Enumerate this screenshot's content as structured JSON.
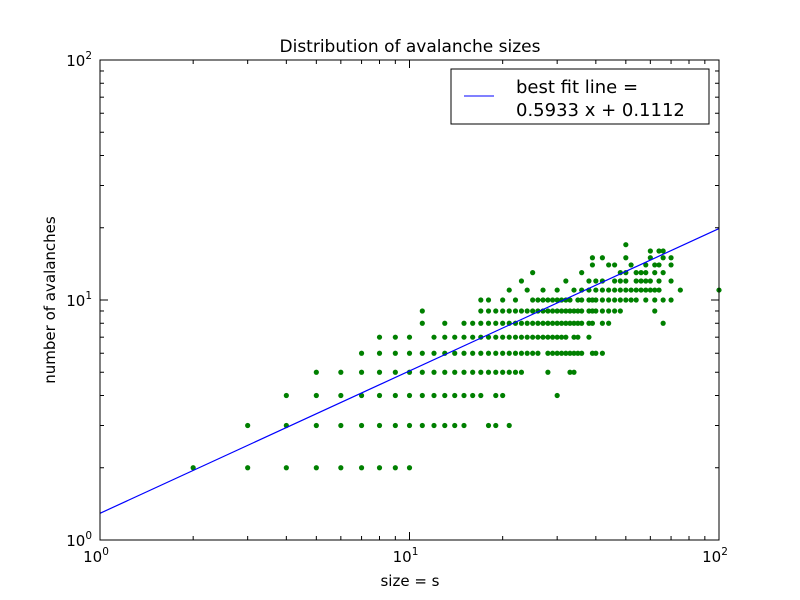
{
  "chart_data": {
    "type": "scatter",
    "title": "Distribution of avalanche sizes",
    "xlabel": "size = s",
    "ylabel": "number of avalanches",
    "xscale": "log",
    "yscale": "log",
    "xlim": [
      1,
      100
    ],
    "ylim": [
      1,
      100
    ],
    "x_ticks": [
      {
        "base": "10",
        "exp": "0",
        "value": 1
      },
      {
        "base": "10",
        "exp": "1",
        "value": 10
      },
      {
        "base": "10",
        "exp": "2",
        "value": 100
      }
    ],
    "y_ticks": [
      {
        "base": "10",
        "exp": "0",
        "value": 1
      },
      {
        "base": "10",
        "exp": "1",
        "value": 10
      },
      {
        "base": "10",
        "exp": "2",
        "value": 100
      }
    ],
    "grid": false,
    "legend": {
      "placement": "top-right",
      "line1": "best fit line =",
      "line2": "0.5933 x + 0.1112"
    },
    "fit_line": {
      "slope": 0.5933,
      "intercept": 0.1112,
      "color": "#0000ff"
    },
    "scatter_color": "#008000",
    "series": [
      {
        "points": [
          [
            2,
            2
          ],
          [
            3,
            3
          ],
          [
            3,
            2
          ],
          [
            4,
            4
          ],
          [
            4,
            3
          ],
          [
            4,
            2
          ],
          [
            5,
            5
          ],
          [
            5,
            4
          ],
          [
            5,
            3
          ],
          [
            5,
            2
          ],
          [
            6,
            5
          ],
          [
            6,
            4
          ],
          [
            6,
            3
          ],
          [
            6,
            2
          ],
          [
            7,
            6
          ],
          [
            7,
            5
          ],
          [
            7,
            4
          ],
          [
            7,
            3
          ],
          [
            7,
            2
          ],
          [
            8,
            7
          ],
          [
            8,
            6
          ],
          [
            8,
            5
          ],
          [
            8,
            4
          ],
          [
            8,
            3
          ],
          [
            8,
            2
          ],
          [
            9,
            7
          ],
          [
            9,
            6
          ],
          [
            9,
            5
          ],
          [
            9,
            4
          ],
          [
            9,
            3
          ],
          [
            9,
            2
          ],
          [
            10,
            7
          ],
          [
            10,
            6
          ],
          [
            10,
            5
          ],
          [
            10,
            4
          ],
          [
            10,
            3
          ],
          [
            10,
            2
          ],
          [
            11,
            9
          ],
          [
            11,
            8
          ],
          [
            11,
            6
          ],
          [
            11,
            5
          ],
          [
            11,
            4
          ],
          [
            11,
            3
          ],
          [
            12,
            7
          ],
          [
            12,
            6
          ],
          [
            12,
            5
          ],
          [
            12,
            4
          ],
          [
            12,
            3
          ],
          [
            13,
            8
          ],
          [
            13,
            7
          ],
          [
            13,
            6
          ],
          [
            13,
            5
          ],
          [
            13,
            4
          ],
          [
            13,
            3
          ],
          [
            14,
            7
          ],
          [
            14,
            6
          ],
          [
            14,
            5
          ],
          [
            14,
            4
          ],
          [
            14,
            3
          ],
          [
            15,
            8
          ],
          [
            15,
            7
          ],
          [
            15,
            6
          ],
          [
            15,
            5
          ],
          [
            15,
            4
          ],
          [
            15,
            3
          ],
          [
            16,
            8
          ],
          [
            16,
            7
          ],
          [
            16,
            6
          ],
          [
            16,
            5
          ],
          [
            16,
            4
          ],
          [
            17,
            10
          ],
          [
            17,
            9
          ],
          [
            17,
            8
          ],
          [
            17,
            7
          ],
          [
            17,
            6
          ],
          [
            17,
            5
          ],
          [
            17,
            4
          ],
          [
            18,
            10
          ],
          [
            18,
            9
          ],
          [
            18,
            8
          ],
          [
            18,
            7
          ],
          [
            18,
            6
          ],
          [
            18,
            5
          ],
          [
            18,
            3
          ],
          [
            19,
            9
          ],
          [
            19,
            8
          ],
          [
            19,
            7
          ],
          [
            19,
            6
          ],
          [
            19,
            5
          ],
          [
            19,
            4
          ],
          [
            19,
            3
          ],
          [
            20,
            10
          ],
          [
            20,
            9
          ],
          [
            20,
            8
          ],
          [
            20,
            7
          ],
          [
            20,
            6
          ],
          [
            20,
            5
          ],
          [
            20,
            4
          ],
          [
            21,
            11
          ],
          [
            21,
            9
          ],
          [
            21,
            8
          ],
          [
            21,
            7
          ],
          [
            21,
            6
          ],
          [
            21,
            5
          ],
          [
            21,
            3
          ],
          [
            22,
            10
          ],
          [
            22,
            9
          ],
          [
            22,
            8
          ],
          [
            22,
            7
          ],
          [
            22,
            6
          ],
          [
            22,
            5
          ],
          [
            23,
            12
          ],
          [
            23,
            9
          ],
          [
            23,
            8
          ],
          [
            23,
            7
          ],
          [
            23,
            6
          ],
          [
            23,
            5
          ],
          [
            24,
            11
          ],
          [
            24,
            9
          ],
          [
            24,
            8
          ],
          [
            24,
            7
          ],
          [
            24,
            6
          ],
          [
            25,
            13
          ],
          [
            25,
            10
          ],
          [
            25,
            9
          ],
          [
            25,
            8
          ],
          [
            25,
            7
          ],
          [
            25,
            6
          ],
          [
            26,
            10
          ],
          [
            26,
            9
          ],
          [
            26,
            8
          ],
          [
            26,
            7
          ],
          [
            26,
            6
          ],
          [
            27,
            11
          ],
          [
            27,
            10
          ],
          [
            27,
            9
          ],
          [
            27,
            8
          ],
          [
            27,
            7
          ],
          [
            28,
            10
          ],
          [
            28,
            9
          ],
          [
            28,
            8
          ],
          [
            28,
            7
          ],
          [
            28,
            6
          ],
          [
            28,
            5
          ],
          [
            29,
            10
          ],
          [
            29,
            9
          ],
          [
            29,
            8
          ],
          [
            29,
            7
          ],
          [
            29,
            6
          ],
          [
            30,
            11
          ],
          [
            30,
            10
          ],
          [
            30,
            9
          ],
          [
            30,
            8
          ],
          [
            30,
            7
          ],
          [
            30,
            6
          ],
          [
            30,
            4
          ],
          [
            31,
            10
          ],
          [
            31,
            9
          ],
          [
            31,
            8
          ],
          [
            31,
            7
          ],
          [
            31,
            6
          ],
          [
            32,
            12
          ],
          [
            32,
            10
          ],
          [
            32,
            9
          ],
          [
            32,
            8
          ],
          [
            32,
            7
          ],
          [
            32,
            6
          ],
          [
            33,
            10
          ],
          [
            33,
            9
          ],
          [
            33,
            8
          ],
          [
            33,
            6
          ],
          [
            33,
            5
          ],
          [
            34,
            11
          ],
          [
            34,
            9
          ],
          [
            34,
            8
          ],
          [
            34,
            7
          ],
          [
            34,
            6
          ],
          [
            34,
            5
          ],
          [
            35,
            10
          ],
          [
            35,
            9
          ],
          [
            35,
            8
          ],
          [
            35,
            7
          ],
          [
            35,
            6
          ],
          [
            36,
            13
          ],
          [
            36,
            11
          ],
          [
            36,
            10
          ],
          [
            36,
            9
          ],
          [
            36,
            8
          ],
          [
            36,
            6
          ],
          [
            38,
            12
          ],
          [
            38,
            11
          ],
          [
            38,
            10
          ],
          [
            38,
            9
          ],
          [
            38,
            8
          ],
          [
            38,
            7
          ],
          [
            39,
            15
          ],
          [
            39,
            14
          ],
          [
            39,
            10
          ],
          [
            39,
            9
          ],
          [
            39,
            8
          ],
          [
            39,
            6
          ],
          [
            40,
            12
          ],
          [
            40,
            11
          ],
          [
            40,
            10
          ],
          [
            40,
            9
          ],
          [
            40,
            6
          ],
          [
            42,
            15
          ],
          [
            42,
            12
          ],
          [
            42,
            11
          ],
          [
            42,
            10
          ],
          [
            42,
            9
          ],
          [
            42,
            8
          ],
          [
            42,
            6
          ],
          [
            44,
            14
          ],
          [
            44,
            11
          ],
          [
            44,
            10
          ],
          [
            44,
            9
          ],
          [
            44,
            8
          ],
          [
            46,
            14
          ],
          [
            46,
            12
          ],
          [
            46,
            11
          ],
          [
            46,
            10
          ],
          [
            46,
            9
          ],
          [
            48,
            13
          ],
          [
            48,
            12
          ],
          [
            48,
            11
          ],
          [
            48,
            10
          ],
          [
            48,
            9
          ],
          [
            50,
            17
          ],
          [
            50,
            15
          ],
          [
            50,
            13
          ],
          [
            50,
            12
          ],
          [
            50,
            11
          ],
          [
            50,
            10
          ],
          [
            52,
            14
          ],
          [
            52,
            11
          ],
          [
            52,
            10
          ],
          [
            54,
            13
          ],
          [
            54,
            12
          ],
          [
            54,
            11
          ],
          [
            54,
            10
          ],
          [
            56,
            13
          ],
          [
            56,
            12
          ],
          [
            56,
            11
          ],
          [
            58,
            14
          ],
          [
            58,
            13
          ],
          [
            58,
            12
          ],
          [
            58,
            11
          ],
          [
            58,
            10
          ],
          [
            60,
            16
          ],
          [
            60,
            15
          ],
          [
            60,
            12
          ],
          [
            60,
            11
          ],
          [
            62,
            14
          ],
          [
            62,
            13
          ],
          [
            62,
            11
          ],
          [
            62,
            10
          ],
          [
            62,
            9
          ],
          [
            64,
            16
          ],
          [
            64,
            14
          ],
          [
            64,
            12
          ],
          [
            64,
            11
          ],
          [
            66,
            16
          ],
          [
            66,
            15
          ],
          [
            66,
            13
          ],
          [
            66,
            10
          ],
          [
            66,
            8
          ],
          [
            70,
            15
          ],
          [
            70,
            14
          ],
          [
            70,
            12
          ],
          [
            70,
            10
          ],
          [
            75,
            11
          ],
          [
            100,
            11
          ]
        ]
      }
    ]
  }
}
